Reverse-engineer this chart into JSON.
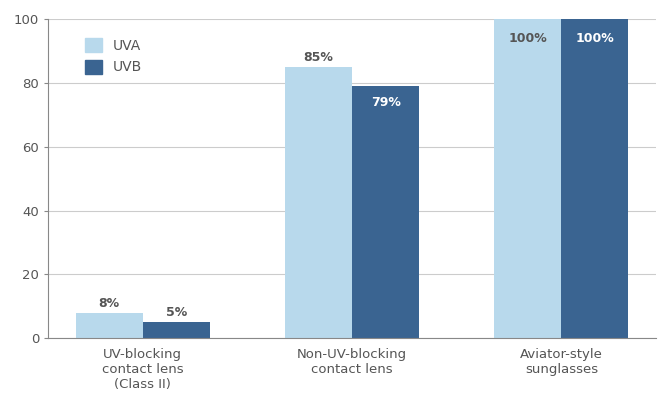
{
  "categories": [
    "UV-blocking\ncontact lens\n(Class II)",
    "Non-UV-blocking\ncontact lens",
    "Aviator-style\nsunglasses"
  ],
  "uva_values": [
    8,
    85,
    100
  ],
  "uvb_values": [
    5,
    79,
    100
  ],
  "uva_color": "#b8d9ec",
  "uvb_color": "#3a6491",
  "uva_label": "UVA",
  "uvb_label": "UVB",
  "ylim": [
    0,
    100
  ],
  "yticks": [
    0,
    20,
    40,
    60,
    80,
    100
  ],
  "bar_width": 0.32,
  "background_color": "#ffffff",
  "tick_fontsize": 9.5,
  "legend_fontsize": 10,
  "annotation_fontsize": 9,
  "label_color": "#555555",
  "grid_color": "#cccccc",
  "spine_color": "#888888"
}
